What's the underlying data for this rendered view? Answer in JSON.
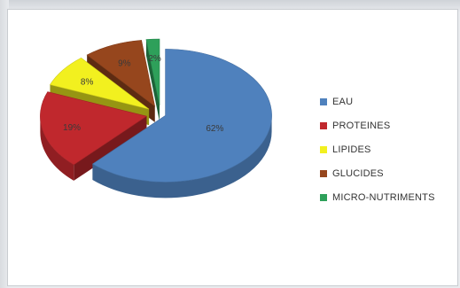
{
  "chart_data": {
    "type": "pie",
    "style": "3d-exploded",
    "categories": [
      "EAU",
      "PROTEINES",
      "LIPIDES",
      "GLUCIDES",
      "MICRO-NUTRIMENTS"
    ],
    "values": [
      62,
      19,
      8,
      9,
      2
    ],
    "labels": [
      "62%",
      "19%",
      "8%",
      "9%",
      "2%"
    ],
    "colors": [
      "#4f81bd",
      "#c0282d",
      "#f2f01f",
      "#96461d",
      "#2ea05a"
    ],
    "legend_position": "right"
  }
}
